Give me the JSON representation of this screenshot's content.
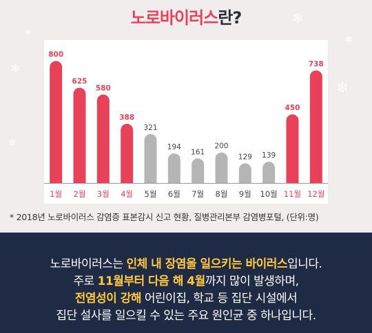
{
  "title": {
    "part_red": "노로바이러스",
    "part_dark": "란?"
  },
  "chart_data": {
    "type": "bar",
    "categories": [
      "1월",
      "2월",
      "3월",
      "4월",
      "5월",
      "6월",
      "7월",
      "8월",
      "9월",
      "10월",
      "11월",
      "12월"
    ],
    "values": [
      800,
      625,
      580,
      388,
      321,
      194,
      161,
      200,
      129,
      139,
      450,
      738
    ],
    "highlight": [
      true,
      true,
      true,
      true,
      false,
      false,
      false,
      false,
      false,
      false,
      true,
      true
    ],
    "ylim": [
      0,
      830
    ],
    "colors": {
      "highlight": "#e8425a",
      "normal": "#b5b5b5"
    }
  },
  "source_note": "* 2018년 노로바이러스 감염증 표본감시 신고 현황, 질병관리본부 감염병포털, (단위:명)",
  "description": {
    "line1": {
      "a": "노로바이러스는 ",
      "b": "인체 내 장염을 일으키는 바이러스",
      "c": "입니다."
    },
    "line2": {
      "a": "주로 ",
      "b": "11월부터 다음 해 4월",
      "c": "까지 많이 발생하며,"
    },
    "line3": {
      "a": "전염성이 강해",
      "b": " 어린이집, 학교 등 집단 시설에서"
    },
    "line4": "집단 설사를 일으킬 수 있는 주요 원인균 중 하나입니다."
  }
}
